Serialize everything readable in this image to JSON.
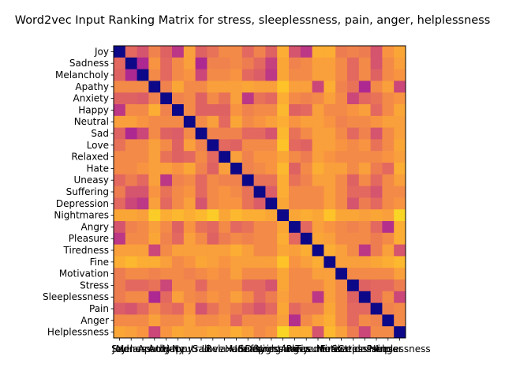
{
  "chart_data": {
    "type": "heatmap",
    "title": "Word2vec Input Ranking Matrix for stress, sleeplessness, pain, anger, helplessness",
    "colormap": "plasma",
    "value_range": [
      0,
      1
    ],
    "grid": false,
    "legend": "none",
    "labels": [
      "Joy",
      "Sadness",
      "Melancholy",
      "Apathy",
      "Anxiety",
      "Happy",
      "Neutral",
      "Sad",
      "Love",
      "Relaxed",
      "Hate",
      "Uneasy",
      "Suffering",
      "Depression",
      "Nightmares",
      "Angry",
      "Pleasure",
      "Tiredness",
      "Fine",
      "Motivation",
      "Stress",
      "Sleeplessness",
      "Pain",
      "Anger",
      "Helplessness"
    ],
    "values": [
      [
        0.0,
        0.62,
        0.55,
        0.7,
        0.6,
        0.45,
        0.78,
        0.6,
        0.65,
        0.72,
        0.72,
        0.62,
        0.7,
        0.6,
        0.82,
        0.55,
        0.45,
        0.82,
        0.82,
        0.68,
        0.7,
        0.68,
        0.55,
        0.75,
        0.8
      ],
      [
        0.62,
        0.0,
        0.4,
        0.75,
        0.62,
        0.72,
        0.78,
        0.4,
        0.7,
        0.7,
        0.72,
        0.68,
        0.62,
        0.48,
        0.8,
        0.7,
        0.72,
        0.78,
        0.78,
        0.72,
        0.62,
        0.72,
        0.55,
        0.72,
        0.78
      ],
      [
        0.6,
        0.4,
        0.0,
        0.72,
        0.62,
        0.72,
        0.75,
        0.5,
        0.72,
        0.72,
        0.75,
        0.62,
        0.58,
        0.45,
        0.8,
        0.72,
        0.72,
        0.78,
        0.78,
        0.72,
        0.62,
        0.72,
        0.6,
        0.72,
        0.75
      ],
      [
        0.72,
        0.72,
        0.72,
        0.0,
        0.7,
        0.8,
        0.72,
        0.72,
        0.78,
        0.78,
        0.78,
        0.8,
        0.78,
        0.78,
        0.88,
        0.78,
        0.78,
        0.5,
        0.82,
        0.7,
        0.65,
        0.4,
        0.72,
        0.78,
        0.5
      ],
      [
        0.6,
        0.6,
        0.58,
        0.7,
        0.0,
        0.7,
        0.72,
        0.6,
        0.72,
        0.65,
        0.78,
        0.45,
        0.65,
        0.62,
        0.82,
        0.72,
        0.7,
        0.72,
        0.78,
        0.72,
        0.5,
        0.62,
        0.65,
        0.72,
        0.75
      ],
      [
        0.45,
        0.72,
        0.72,
        0.82,
        0.7,
        0.0,
        0.72,
        0.6,
        0.6,
        0.6,
        0.75,
        0.7,
        0.72,
        0.72,
        0.85,
        0.6,
        0.62,
        0.78,
        0.72,
        0.72,
        0.75,
        0.78,
        0.62,
        0.72,
        0.8
      ],
      [
        0.78,
        0.78,
        0.75,
        0.72,
        0.72,
        0.72,
        0.0,
        0.72,
        0.78,
        0.62,
        0.8,
        0.72,
        0.75,
        0.78,
        0.82,
        0.75,
        0.78,
        0.78,
        0.75,
        0.7,
        0.72,
        0.72,
        0.75,
        0.78,
        0.78
      ],
      [
        0.6,
        0.4,
        0.5,
        0.72,
        0.6,
        0.58,
        0.72,
        0.0,
        0.7,
        0.7,
        0.7,
        0.62,
        0.62,
        0.55,
        0.85,
        0.65,
        0.72,
        0.78,
        0.78,
        0.72,
        0.62,
        0.7,
        0.55,
        0.72,
        0.78
      ],
      [
        0.65,
        0.72,
        0.72,
        0.78,
        0.72,
        0.6,
        0.78,
        0.7,
        0.0,
        0.62,
        0.6,
        0.72,
        0.72,
        0.72,
        0.88,
        0.62,
        0.6,
        0.78,
        0.78,
        0.75,
        0.72,
        0.75,
        0.65,
        0.72,
        0.8
      ],
      [
        0.72,
        0.72,
        0.72,
        0.78,
        0.65,
        0.6,
        0.62,
        0.72,
        0.62,
        0.0,
        0.78,
        0.7,
        0.75,
        0.75,
        0.8,
        0.72,
        0.68,
        0.78,
        0.75,
        0.72,
        0.72,
        0.72,
        0.72,
        0.75,
        0.78
      ],
      [
        0.72,
        0.72,
        0.75,
        0.78,
        0.78,
        0.75,
        0.8,
        0.7,
        0.6,
        0.78,
        0.0,
        0.7,
        0.72,
        0.75,
        0.85,
        0.6,
        0.72,
        0.82,
        0.78,
        0.78,
        0.72,
        0.78,
        0.68,
        0.62,
        0.82
      ],
      [
        0.62,
        0.68,
        0.62,
        0.78,
        0.45,
        0.7,
        0.72,
        0.62,
        0.72,
        0.7,
        0.7,
        0.0,
        0.65,
        0.65,
        0.82,
        0.65,
        0.7,
        0.78,
        0.78,
        0.72,
        0.6,
        0.72,
        0.62,
        0.72,
        0.78
      ],
      [
        0.68,
        0.55,
        0.55,
        0.75,
        0.65,
        0.72,
        0.75,
        0.62,
        0.72,
        0.75,
        0.72,
        0.65,
        0.0,
        0.58,
        0.82,
        0.72,
        0.72,
        0.72,
        0.78,
        0.72,
        0.62,
        0.62,
        0.55,
        0.72,
        0.72
      ],
      [
        0.62,
        0.5,
        0.45,
        0.78,
        0.62,
        0.72,
        0.78,
        0.55,
        0.72,
        0.75,
        0.75,
        0.65,
        0.58,
        0.0,
        0.8,
        0.72,
        0.72,
        0.72,
        0.78,
        0.72,
        0.55,
        0.68,
        0.62,
        0.72,
        0.75
      ],
      [
        0.8,
        0.8,
        0.78,
        0.9,
        0.82,
        0.85,
        0.82,
        0.85,
        0.9,
        0.8,
        0.85,
        0.82,
        0.82,
        0.8,
        0.0,
        0.8,
        0.82,
        0.8,
        0.88,
        0.8,
        0.8,
        0.78,
        0.8,
        0.78,
        0.92
      ],
      [
        0.55,
        0.7,
        0.72,
        0.78,
        0.72,
        0.6,
        0.75,
        0.65,
        0.62,
        0.72,
        0.62,
        0.65,
        0.72,
        0.72,
        0.8,
        0.0,
        0.62,
        0.78,
        0.75,
        0.72,
        0.7,
        0.72,
        0.62,
        0.42,
        0.82
      ],
      [
        0.45,
        0.72,
        0.72,
        0.8,
        0.7,
        0.62,
        0.78,
        0.72,
        0.6,
        0.68,
        0.72,
        0.7,
        0.72,
        0.72,
        0.82,
        0.62,
        0.0,
        0.8,
        0.78,
        0.72,
        0.72,
        0.72,
        0.68,
        0.72,
        0.82
      ],
      [
        0.78,
        0.78,
        0.78,
        0.5,
        0.72,
        0.78,
        0.78,
        0.78,
        0.78,
        0.78,
        0.82,
        0.78,
        0.72,
        0.72,
        0.8,
        0.78,
        0.82,
        0.0,
        0.82,
        0.78,
        0.72,
        0.45,
        0.68,
        0.78,
        0.55
      ],
      [
        0.82,
        0.85,
        0.82,
        0.82,
        0.78,
        0.72,
        0.75,
        0.8,
        0.78,
        0.75,
        0.78,
        0.78,
        0.78,
        0.78,
        0.88,
        0.75,
        0.78,
        0.82,
        0.0,
        0.78,
        0.78,
        0.78,
        0.8,
        0.82,
        0.85
      ],
      [
        0.68,
        0.72,
        0.72,
        0.7,
        0.72,
        0.72,
        0.7,
        0.72,
        0.75,
        0.72,
        0.78,
        0.72,
        0.72,
        0.72,
        0.8,
        0.72,
        0.72,
        0.78,
        0.78,
        0.0,
        0.72,
        0.72,
        0.72,
        0.72,
        0.78
      ],
      [
        0.68,
        0.62,
        0.62,
        0.65,
        0.5,
        0.72,
        0.72,
        0.62,
        0.72,
        0.72,
        0.72,
        0.62,
        0.62,
        0.55,
        0.8,
        0.72,
        0.72,
        0.72,
        0.78,
        0.72,
        0.0,
        0.6,
        0.62,
        0.62,
        0.68
      ],
      [
        0.68,
        0.72,
        0.72,
        0.4,
        0.62,
        0.78,
        0.72,
        0.7,
        0.75,
        0.72,
        0.78,
        0.72,
        0.62,
        0.68,
        0.78,
        0.72,
        0.72,
        0.45,
        0.78,
        0.72,
        0.6,
        0.0,
        0.62,
        0.72,
        0.5
      ],
      [
        0.58,
        0.55,
        0.62,
        0.72,
        0.65,
        0.62,
        0.75,
        0.55,
        0.65,
        0.72,
        0.68,
        0.62,
        0.55,
        0.62,
        0.8,
        0.62,
        0.68,
        0.68,
        0.8,
        0.72,
        0.62,
        0.62,
        0.0,
        0.7,
        0.72
      ],
      [
        0.72,
        0.72,
        0.72,
        0.78,
        0.72,
        0.72,
        0.78,
        0.72,
        0.72,
        0.75,
        0.62,
        0.72,
        0.72,
        0.72,
        0.78,
        0.42,
        0.72,
        0.78,
        0.82,
        0.72,
        0.62,
        0.72,
        0.7,
        0.0,
        0.72
      ],
      [
        0.8,
        0.78,
        0.75,
        0.5,
        0.75,
        0.8,
        0.78,
        0.78,
        0.8,
        0.78,
        0.82,
        0.78,
        0.72,
        0.75,
        0.92,
        0.82,
        0.82,
        0.55,
        0.85,
        0.78,
        0.68,
        0.5,
        0.72,
        0.72,
        0.0
      ]
    ]
  }
}
